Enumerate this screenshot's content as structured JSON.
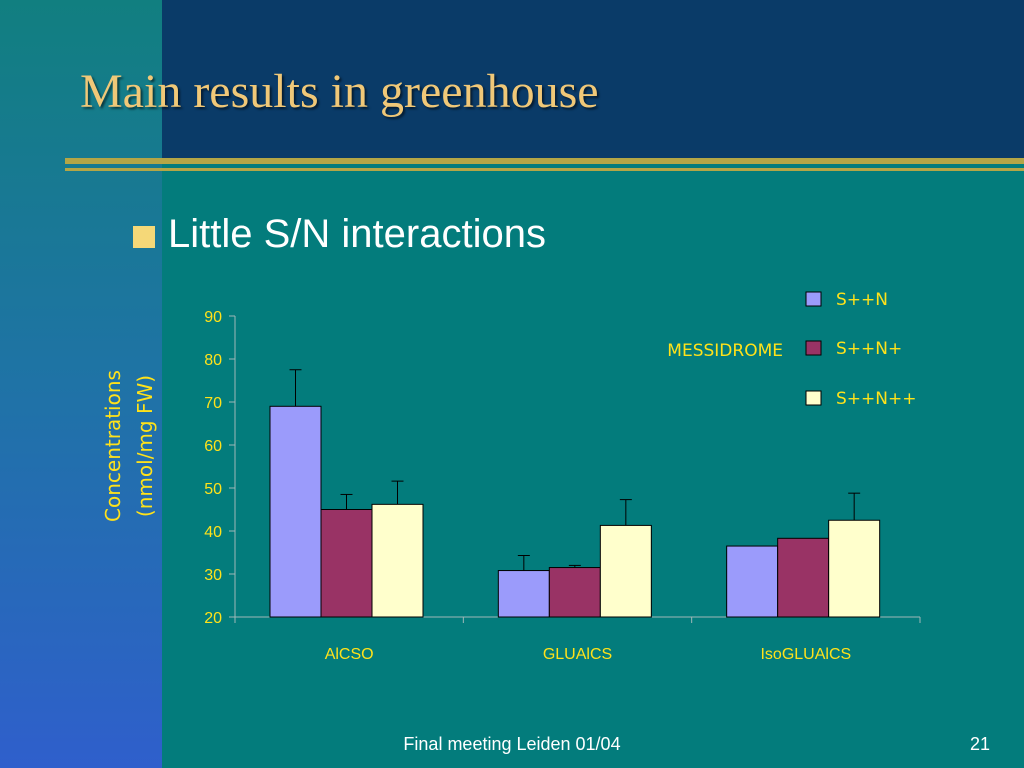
{
  "slide": {
    "title": "Main results in greenhouse",
    "bullet": "Little S/N interactions",
    "footer": "Final meeting Leiden 01/04",
    "page_number": "21"
  },
  "colors": {
    "title": "#f0c878",
    "chart_text": "#ffe21a",
    "rule": "#b4a646",
    "series": [
      "#9b9bfb",
      "#993365",
      "#ffffcc"
    ]
  },
  "chart_data": {
    "type": "bar",
    "title": "",
    "annotation": "MESSIDROME",
    "ylabel_lines": [
      "Concentrations",
      "(nmol/mg FW)"
    ],
    "xlabel": "",
    "ylim": [
      20,
      90
    ],
    "yticks": [
      20,
      30,
      40,
      50,
      60,
      70,
      80,
      90
    ],
    "grid": false,
    "legend_position": "top-right",
    "categories": [
      "AlCSO",
      "GLUAlCS",
      "IsoGLUAlCS"
    ],
    "series": [
      {
        "name": "S++N",
        "values": [
          69,
          30.8,
          36.5
        ],
        "errors": [
          8.5,
          3.5,
          0
        ]
      },
      {
        "name": "S++N+",
        "values": [
          45,
          31.5,
          38.3
        ],
        "errors": [
          3.5,
          0.5,
          0
        ]
      },
      {
        "name": "S++N++",
        "values": [
          46.2,
          41.3,
          42.5
        ],
        "errors": [
          5.4,
          6,
          6.3
        ]
      }
    ]
  }
}
